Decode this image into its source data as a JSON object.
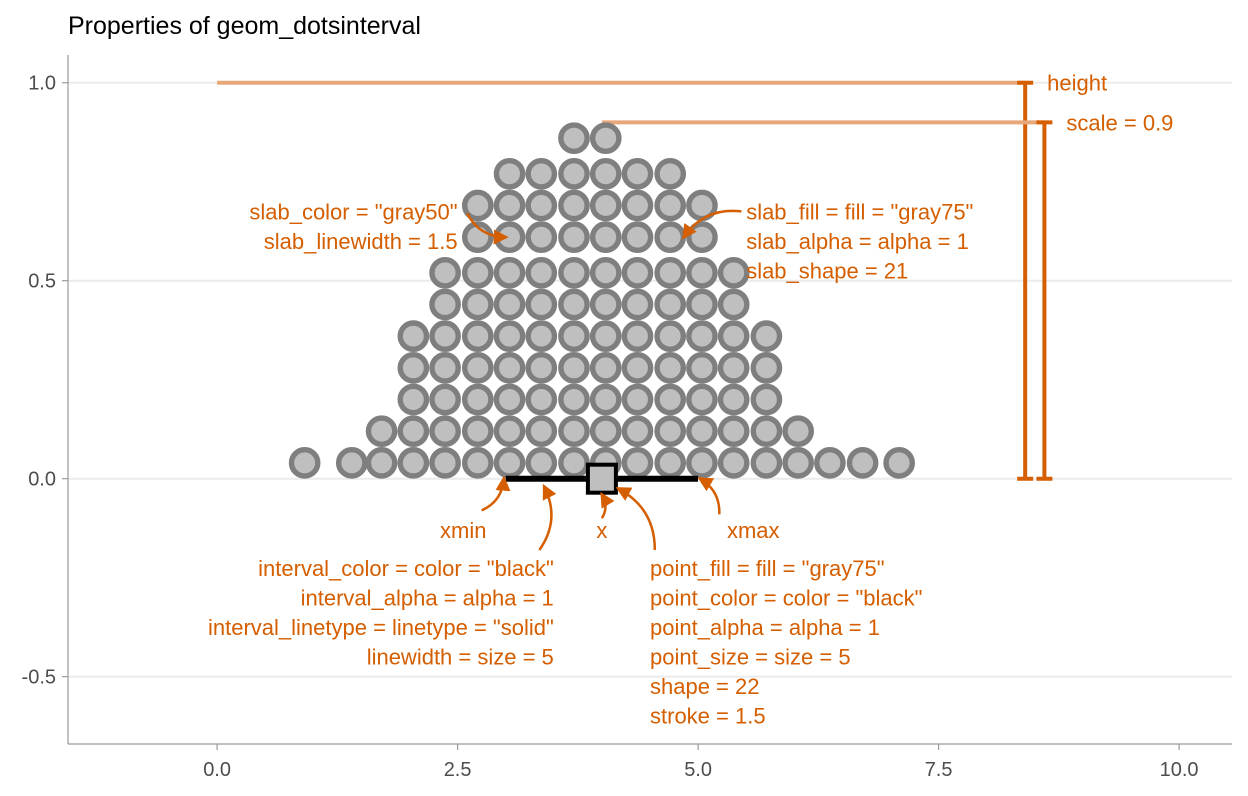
{
  "chart_data": {
    "type": "dotsinterval",
    "title": "Properties of geom_dotsinterval",
    "xlabel": "",
    "ylabel": "",
    "xlim": [
      -1.55,
      10.55
    ],
    "ylim": [
      -0.67,
      1.07
    ],
    "x_ticks": [
      0.0,
      2.5,
      5.0,
      7.5,
      10.0
    ],
    "x_tick_labels": [
      "0.0",
      "2.5",
      "5.0",
      "7.5",
      "10.0"
    ],
    "y_ticks": [
      -0.5,
      0.0,
      0.5,
      1.0
    ],
    "y_tick_labels": [
      "-0.5",
      "0.0",
      "0.5",
      "1.0"
    ],
    "grid": "horizontal major lines",
    "dot_diameter": 0.08,
    "dot_rows": [
      {
        "y": 0.04,
        "x": [
          0.91,
          1.4,
          1.71,
          2.04,
          2.37,
          2.71,
          3.04,
          3.37,
          3.71,
          4.04,
          4.37,
          4.71,
          5.04,
          5.37,
          5.71,
          6.04,
          6.37,
          6.71,
          7.09
        ]
      },
      {
        "y": 0.12,
        "x": [
          1.71,
          2.04,
          2.37,
          2.71,
          3.04,
          3.37,
          3.71,
          4.04,
          4.37,
          4.71,
          5.04,
          5.37,
          5.71,
          6.04
        ]
      },
      {
        "y": 0.2,
        "x": [
          2.04,
          2.37,
          2.71,
          3.04,
          3.37,
          3.71,
          4.04,
          4.37,
          4.71,
          5.04,
          5.37,
          5.71
        ]
      },
      {
        "y": 0.28,
        "x": [
          2.04,
          2.37,
          2.71,
          3.04,
          3.37,
          3.71,
          4.04,
          4.37,
          4.71,
          5.04,
          5.37,
          5.71
        ]
      },
      {
        "y": 0.36,
        "x": [
          2.04,
          2.37,
          2.71,
          3.04,
          3.37,
          3.71,
          4.04,
          4.37,
          4.71,
          5.04,
          5.37,
          5.71
        ]
      },
      {
        "y": 0.44,
        "x": [
          2.37,
          2.71,
          3.04,
          3.37,
          3.71,
          4.04,
          4.37,
          4.71,
          5.04,
          5.37
        ]
      },
      {
        "y": 0.52,
        "x": [
          2.37,
          2.71,
          3.04,
          3.37,
          3.71,
          4.04,
          4.37,
          4.71,
          5.04,
          5.37
        ]
      },
      {
        "y": 0.61,
        "x": [
          2.71,
          3.04,
          3.37,
          3.71,
          4.04,
          4.37,
          4.71,
          5.04
        ]
      },
      {
        "y": 0.69,
        "x": [
          2.71,
          3.04,
          3.37,
          3.71,
          4.04,
          4.37,
          4.71,
          5.04
        ]
      },
      {
        "y": 0.77,
        "x": [
          3.04,
          3.37,
          3.71,
          4.04,
          4.37,
          4.71
        ]
      },
      {
        "y": 0.86,
        "x": [
          3.71,
          4.04
        ]
      }
    ],
    "interval": {
      "xmin": 3.0,
      "xmax": 5.0,
      "y": 0.0,
      "color": "#000000"
    },
    "point": {
      "x": 4.0,
      "y": 0.0,
      "fill": "#bfbfbf",
      "color": "#000000"
    },
    "slab_fill": "#bfbfbf",
    "slab_color": "#7f7f7f",
    "annotation_color": "#d55e00",
    "height_line": {
      "x_start": 0.0,
      "x_end": 8.4,
      "y": 1.0,
      "bracket_x": 8.4,
      "label": "height"
    },
    "scale_line": {
      "x_start": 4.0,
      "x_end": 8.6,
      "y": 0.9,
      "bracket_x": 8.6,
      "label": "scale = 0.9"
    },
    "annotations": [
      {
        "id": "slab-color-label",
        "lines": [
          "slab_color = \"gray50\"",
          "slab_linewidth = 1.5"
        ],
        "x": 2.5,
        "y": 0.675,
        "anchor": "end",
        "arrow_from": [
          2.6,
          0.67
        ],
        "arrow_to": [
          3.0,
          0.61
        ]
      },
      {
        "id": "slab-fill-label",
        "lines": [
          "slab_fill = fill = \"gray75\"",
          "slab_alpha = alpha = 1",
          "slab_shape = 21"
        ],
        "x": 5.5,
        "y": 0.675,
        "anchor": "start",
        "arrow_from": [
          5.45,
          0.675
        ],
        "arrow_to": [
          4.85,
          0.61
        ]
      },
      {
        "id": "xmin-label",
        "lines": [
          "xmin"
        ],
        "x": 2.8,
        "y": -0.13,
        "anchor": "end",
        "arrow_from": [
          2.75,
          -0.08
        ],
        "arrow_to": [
          2.98,
          0.0
        ]
      },
      {
        "id": "interval-label",
        "lines": [
          "interval_color = color = \"black\"",
          "interval_alpha = alpha = 1",
          "interval_linetype = linetype = \"solid\"",
          "linewidth = size = 5"
        ],
        "x": 3.5,
        "y": -0.225,
        "anchor": "end",
        "arrow_from": [
          3.35,
          -0.18
        ],
        "arrow_to": [
          3.4,
          -0.02
        ]
      },
      {
        "id": "x-label",
        "lines": [
          "x"
        ],
        "x": 4.0,
        "y": -0.13,
        "anchor": "middle",
        "arrow_from": [
          4.0,
          -0.1
        ],
        "arrow_to": [
          4.0,
          -0.04
        ]
      },
      {
        "id": "point-label",
        "lines": [
          "point_fill = fill = \"gray75\"",
          "point_color = color = \"black\"",
          "point_alpha = alpha = 1",
          "point_size = size = 5",
          "shape = 22",
          "stroke = 1.5"
        ],
        "x": 4.5,
        "y": -0.225,
        "anchor": "start",
        "arrow_from": [
          4.55,
          -0.18
        ],
        "arrow_to": [
          4.17,
          -0.025
        ]
      },
      {
        "id": "xmax-label",
        "lines": [
          "xmax"
        ],
        "x": 5.3,
        "y": -0.13,
        "anchor": "start",
        "arrow_from": [
          5.22,
          -0.09
        ],
        "arrow_to": [
          5.02,
          0.0
        ]
      }
    ]
  }
}
